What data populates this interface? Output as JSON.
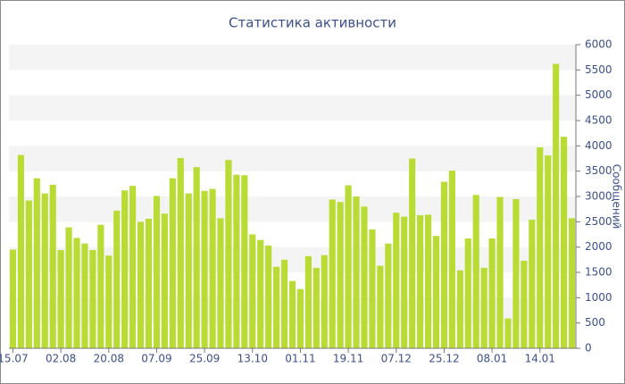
{
  "chart_data": {
    "type": "bar",
    "title": "Статистика активности",
    "y_axis_label": "Сообщений",
    "categories": [
      "15.07",
      null,
      null,
      null,
      null,
      null,
      "02.08",
      null,
      null,
      null,
      null,
      null,
      "20.08",
      null,
      null,
      null,
      null,
      null,
      "07.09",
      null,
      null,
      null,
      null,
      null,
      "25.09",
      null,
      null,
      null,
      null,
      null,
      "13.10",
      null,
      null,
      null,
      null,
      null,
      "01.11",
      null,
      null,
      null,
      null,
      null,
      "19.11",
      null,
      null,
      null,
      null,
      null,
      "07.12",
      null,
      null,
      null,
      null,
      null,
      "25.12",
      null,
      null,
      null,
      null,
      null,
      "08.01",
      null,
      null,
      null,
      null,
      null,
      "14.01",
      null,
      null,
      null,
      null
    ],
    "values": [
      1950,
      3820,
      2920,
      3360,
      3060,
      3230,
      1940,
      2390,
      2180,
      2070,
      1940,
      2440,
      1830,
      2720,
      3120,
      3210,
      2500,
      2560,
      3010,
      2660,
      3360,
      3760,
      3060,
      3580,
      3110,
      3150,
      2570,
      3720,
      3430,
      3420,
      2250,
      2140,
      2030,
      1610,
      1750,
      1330,
      1170,
      1820,
      1590,
      1840,
      2940,
      2890,
      3220,
      3000,
      2800,
      2350,
      1630,
      2070,
      2680,
      2600,
      3750,
      2630,
      2640,
      2220,
      3290,
      3510,
      1540,
      2170,
      3030,
      1590,
      2170,
      2990,
      590,
      2950,
      1730,
      2540,
      3970,
      3810,
      5620,
      4180,
      2570
    ],
    "color": "#b9dc35",
    "ylim": [
      0,
      6000
    ],
    "yticks": [
      0,
      500,
      1000,
      1500,
      2000,
      2500,
      3000,
      3500,
      4000,
      4500,
      5000,
      5500,
      6000
    ],
    "grid": true
  }
}
